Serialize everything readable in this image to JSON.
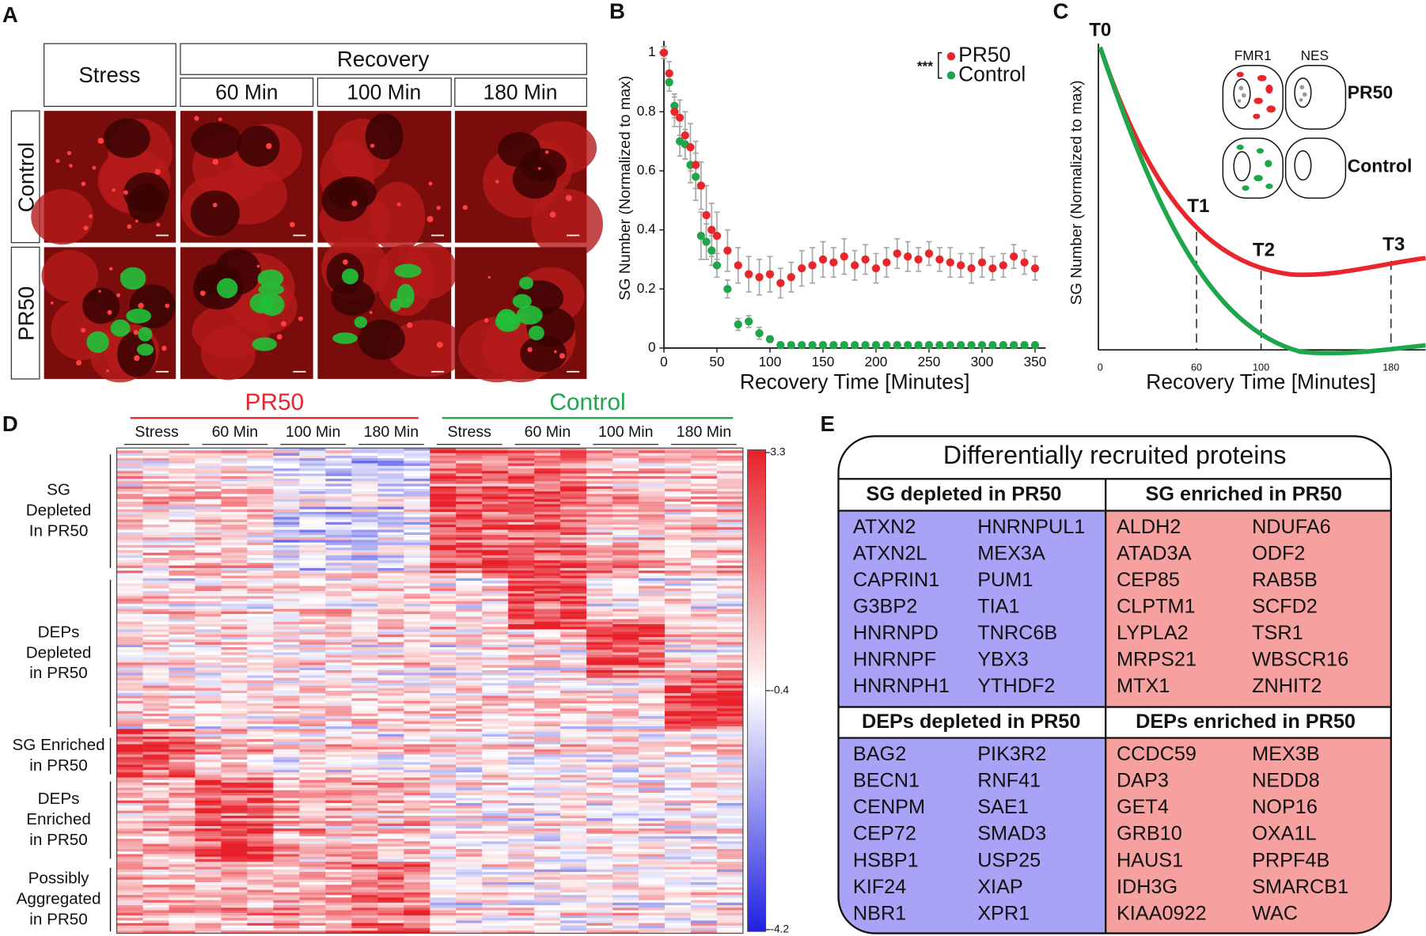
{
  "panel_labels": [
    "A",
    "B",
    "C",
    "D",
    "E"
  ],
  "panel_a": {
    "stress": "Stress",
    "recovery": "Recovery",
    "times": [
      "60 Min",
      "100 Min",
      "180 Min"
    ],
    "rows": [
      "Control",
      "PR50"
    ]
  },
  "chart_data": {
    "type": "scatter",
    "x_label": "Recovery Time [Minutes]",
    "y_label": "SG Number (Normalized to max)",
    "significance": "***",
    "x": [
      0,
      5,
      10,
      15,
      20,
      25,
      30,
      35,
      40,
      45,
      50,
      60,
      70,
      80,
      90,
      100,
      110,
      120,
      130,
      140,
      150,
      160,
      170,
      180,
      190,
      200,
      210,
      220,
      230,
      240,
      250,
      260,
      270,
      280,
      290,
      300,
      310,
      320,
      330,
      340,
      350
    ],
    "series": [
      {
        "name": "PR50",
        "color": "#e8262b",
        "values": [
          1.0,
          0.93,
          0.8,
          0.78,
          0.72,
          0.68,
          0.62,
          0.55,
          0.45,
          0.4,
          0.38,
          0.33,
          0.28,
          0.25,
          0.24,
          0.25,
          0.22,
          0.24,
          0.27,
          0.28,
          0.3,
          0.29,
          0.31,
          0.28,
          0.3,
          0.27,
          0.29,
          0.32,
          0.31,
          0.3,
          0.32,
          0.3,
          0.29,
          0.28,
          0.27,
          0.29,
          0.27,
          0.28,
          0.31,
          0.29,
          0.27
        ],
        "errors": [
          0.02,
          0.04,
          0.05,
          0.06,
          0.08,
          0.08,
          0.08,
          0.08,
          0.1,
          0.09,
          0.08,
          0.07,
          0.06,
          0.06,
          0.06,
          0.06,
          0.05,
          0.05,
          0.06,
          0.06,
          0.06,
          0.05,
          0.06,
          0.05,
          0.05,
          0.05,
          0.05,
          0.05,
          0.05,
          0.04,
          0.04,
          0.04,
          0.05,
          0.04,
          0.05,
          0.05,
          0.04,
          0.04,
          0.04,
          0.04,
          0.04
        ]
      },
      {
        "name": "Control",
        "color": "#1ea64a",
        "values": [
          1.0,
          0.9,
          0.82,
          0.7,
          0.69,
          0.62,
          0.58,
          0.38,
          0.36,
          0.33,
          0.28,
          0.2,
          0.08,
          0.09,
          0.05,
          0.03,
          0.01,
          0.01,
          0.01,
          0.01,
          0.01,
          0.01,
          0.01,
          0.01,
          0.01,
          0.01,
          0.01,
          0.01,
          0.01,
          0.01,
          0.01,
          0.01,
          0.01,
          0.01,
          0.01,
          0.01,
          0.01,
          0.01,
          0.01,
          0.01,
          0.01
        ],
        "errors": [
          0.02,
          0.03,
          0.04,
          0.05,
          0.05,
          0.06,
          0.08,
          0.08,
          0.06,
          0.05,
          0.04,
          0.03,
          0.02,
          0.02,
          0.02,
          0.01,
          0.01,
          0.01,
          0.01,
          0.01,
          0.01,
          0.01,
          0.01,
          0.01,
          0.01,
          0.01,
          0.01,
          0.01,
          0.01,
          0.01,
          0.01,
          0.01,
          0.01,
          0.01,
          0.01,
          0.01,
          0.01,
          0.01,
          0.01,
          0.01,
          0.01
        ]
      }
    ],
    "xlim": [
      0,
      360
    ],
    "ylim": [
      0,
      1.04
    ],
    "xticks": [
      0,
      50,
      100,
      150,
      200,
      250,
      300,
      350
    ],
    "yticks": [
      0,
      0.2,
      0.4,
      0.6,
      0.8,
      1
    ],
    "error_color": "#a8a8a8"
  },
  "panel_c": {
    "points": [
      "T0",
      "T1",
      "T2",
      "T3"
    ],
    "cells": [
      "FMR1",
      "NES"
    ],
    "rows": [
      "PR50",
      "Control"
    ],
    "xticks": [
      0,
      60,
      100,
      180
    ],
    "y_label": "SG Number (Normalized to max)",
    "x_label": "Recovery Time [Minutes]"
  },
  "panel_d": {
    "groups": [
      {
        "name": "PR50",
        "color": "#e8262b"
      },
      {
        "name": "Control",
        "color": "#1ea64a"
      }
    ],
    "conditions": [
      "Stress",
      "60 Min",
      "100 Min",
      "180 Min"
    ],
    "colorbar_ticks": [
      3.3,
      -0.4,
      -4.2
    ],
    "row_groups": [
      [
        "SG",
        "Depleted",
        "In PR50"
      ],
      [
        "DEPs",
        "Depleted",
        "in PR50"
      ],
      [
        "SG Enriched",
        "in PR50"
      ],
      [
        "DEPs",
        "Enriched",
        "in PR50"
      ],
      [
        "Possibly",
        "Aggregated",
        "in PR50"
      ]
    ]
  },
  "panel_e": {
    "title": "Differentially recruited proteins",
    "cells": [
      {
        "header": "SG depleted in PR50",
        "items": [
          "ATXN2",
          "ATXN2L",
          "CAPRIN1",
          "G3BP2",
          "HNRNPD",
          "HNRNPF",
          "HNRNPH1",
          "HNRNPUL1",
          "MEX3A",
          "PUM1",
          "TIA1",
          "TNRC6B",
          "YBX3",
          "YTHDF2"
        ]
      },
      {
        "header": "SG enriched in PR50",
        "items": [
          "ALDH2",
          "ATAD3A",
          "CEP85",
          "CLPTM1",
          "LYPLA2",
          "MRPS21",
          "MTX1",
          "NDUFA6",
          "ODF2",
          "RAB5B",
          "SCFD2",
          "TSR1",
          "WBSCR16",
          "ZNHIT2"
        ]
      },
      {
        "header": "DEPs depleted in PR50",
        "items": [
          "BAG2",
          "BECN1",
          "CENPM",
          "CEP72",
          "HSBP1",
          "KIF24",
          "NBR1",
          "PIK3R2",
          "RNF41",
          "SAE1",
          "SMAD3",
          "USP25",
          "XIAP",
          "XPR1"
        ]
      },
      {
        "header": "DEPs enriched in PR50",
        "items": [
          "CCDC59",
          "DAP3",
          "GET4",
          "GRB10",
          "HAUS1",
          "IDH3G",
          "KIAA0922",
          "MEX3B",
          "NEDD8",
          "NOP16",
          "OXA1L",
          "PRPF4B",
          "SMARCB1",
          "WAC"
        ]
      }
    ]
  }
}
